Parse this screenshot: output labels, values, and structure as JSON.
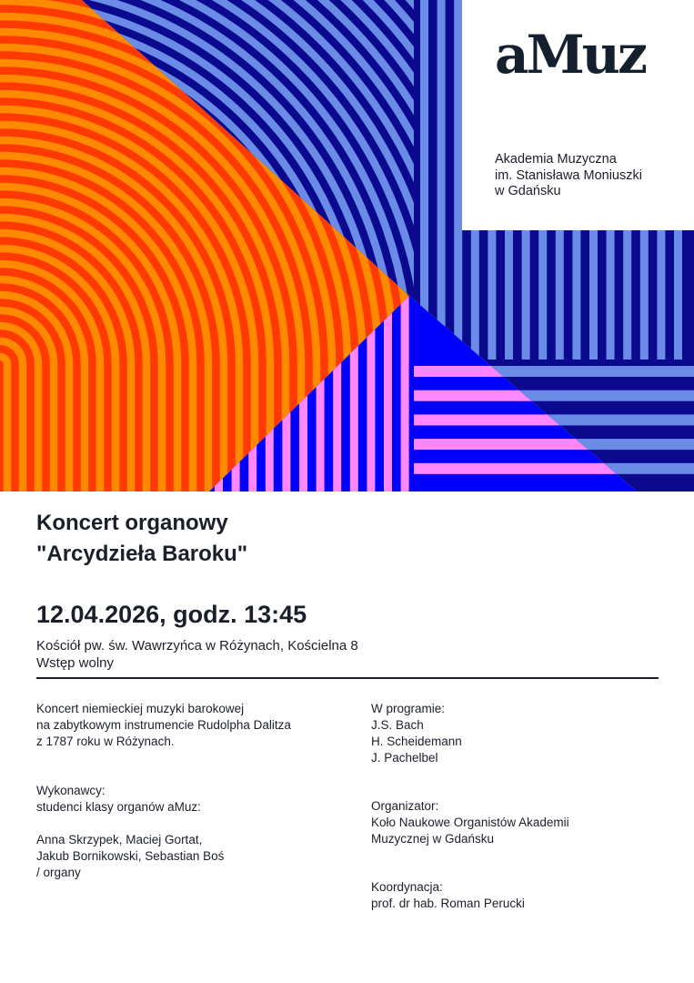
{
  "colors": {
    "navy": "#0b0a8f",
    "light_blue": "#6b8ce6",
    "orange": "#ff8a00",
    "red": "#ff3a00",
    "blue": "#0000ff",
    "pink": "#ff88ff",
    "text": "#1b1f2a"
  },
  "logo": {
    "text": "aMuz",
    "institution": [
      "Akademia Muzyczna",
      "im. Stanisława Moniuszki",
      "w Gdańsku"
    ]
  },
  "event": {
    "title_line1": "Koncert organowy",
    "title_line2": "\"Arcydzieła Baroku\"",
    "datetime": "12.04.2026, godz. 13:45",
    "venue": "Kościół pw. św. Wawrzyńca w Różynach, Kościelna 8",
    "admission": "Wstęp wolny"
  },
  "left_column": {
    "description": [
      "Koncert niemieckiej muzyki barokowej",
      "na zabytkowym instrumencie Rudolpha Dalitza",
      "z 1787 roku w Różynach."
    ],
    "performers_label": "Wykonawcy:",
    "performers_intro": "studenci klasy organów aMuz:",
    "performers": [
      "Anna Skrzypek, Maciej Gortat,",
      "Jakub Bornikowski, Sebastian Boś",
      "/ organy"
    ]
  },
  "right_column": {
    "program_label": "W programie:",
    "program": [
      "J.S. Bach",
      "H. Scheidemann",
      "J. Pachelbel"
    ],
    "organizer_label": "Organizator:",
    "organizer": [
      "Koło Naukowe Organistów Akademii",
      "Muzycznej w Gdańsku"
    ],
    "coordination_label": "Koordynacja:",
    "coordination": "prof. dr hab. Roman Perucki"
  }
}
